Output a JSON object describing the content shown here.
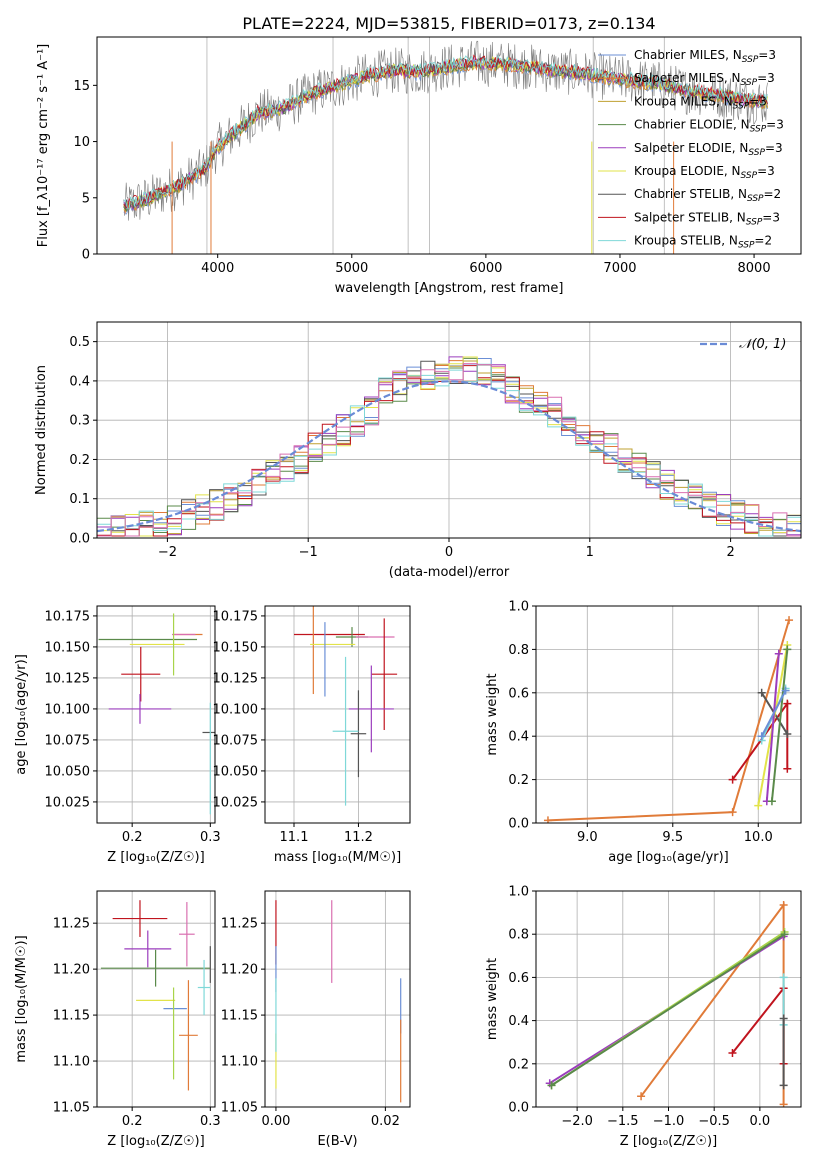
{
  "title": "PLATE=2224, MJD=53815, FIBERID=0173, z=0.134",
  "chart_data": [
    {
      "type": "line",
      "xlabel": "wavelength [Angstrom, rest frame]",
      "ylabel": "Flux [f_λ10⁻¹⁷ erg cm⁻² s⁻¹ A⁻¹]",
      "xlim": [
        3100,
        8350
      ],
      "ylim": [
        0,
        19.3
      ],
      "xticks": [
        4000,
        5000,
        6000,
        7000,
        8000
      ],
      "yticks": [
        0,
        5,
        10,
        15
      ],
      "legend": "top-right",
      "series": [
        {
          "name": "Chabrier MILES, N_SSP=3",
          "color": "#6b8fd6"
        },
        {
          "name": "Salpeter MILES, N_SSP=3",
          "color": "#e07b39"
        },
        {
          "name": "Kroupa MILES, N_SSP=3",
          "color": "#bfa030"
        },
        {
          "name": "Chabrier ELODIE, N_SSP=3",
          "color": "#5a8a4a"
        },
        {
          "name": "Salpeter ELODIE, N_SSP=3",
          "color": "#9b3dbd"
        },
        {
          "name": "Kroupa ELODIE, N_SSP=3",
          "color": "#e2e34a"
        },
        {
          "name": "Chabrier STELIB, N_SSP=2",
          "color": "#555555"
        },
        {
          "name": "Salpeter STELIB, N_SSP=3",
          "color": "#c0141e"
        },
        {
          "name": "Kroupa STELIB, N_SSP=2",
          "color": "#7fd8d8"
        }
      ],
      "data_series": {
        "name": "data",
        "color": "#7a7a7a"
      },
      "continuum_knots": [
        [
          3300,
          4.2
        ],
        [
          3500,
          5
        ],
        [
          3700,
          6
        ],
        [
          3900,
          7.5
        ],
        [
          4000,
          9.5
        ],
        [
          4100,
          10.5
        ],
        [
          4300,
          12.5
        ],
        [
          4500,
          13
        ],
        [
          4700,
          14.3
        ],
        [
          4900,
          15
        ],
        [
          5100,
          15.8
        ],
        [
          5300,
          16.3
        ],
        [
          5500,
          16.2
        ],
        [
          5700,
          16.6
        ],
        [
          5900,
          17
        ],
        [
          6100,
          16.9
        ],
        [
          6300,
          16.7
        ],
        [
          6500,
          16.3
        ],
        [
          6700,
          16.1
        ],
        [
          6900,
          15.7
        ],
        [
          7100,
          15.4
        ],
        [
          7300,
          15.1
        ],
        [
          7500,
          14.5
        ],
        [
          7700,
          14.2
        ],
        [
          7900,
          13.8
        ],
        [
          8100,
          13.5
        ]
      ]
    },
    {
      "type": "histogram",
      "xlabel": "(data-model)/error",
      "ylabel": "Normed distribution",
      "xlim": [
        -2.5,
        2.5
      ],
      "ylim": [
        0,
        0.55
      ],
      "xticks": [
        -2,
        -1,
        0,
        1,
        2
      ],
      "yticks": [
        0.0,
        0.1,
        0.2,
        0.3,
        0.4,
        0.5
      ],
      "legend": "top-right",
      "reference_curve": {
        "name": "𝒩(0, 1)",
        "color": "#6a8bd6",
        "mean": 0,
        "sigma": 1
      }
    },
    {
      "type": "scatter",
      "xlabel": "Z [log₁₀(Z/Z☉)]",
      "ylabel": "age  [log₁₀(age/yr)]",
      "xlim": [
        0.155,
        0.306
      ],
      "ylim": [
        10.008,
        10.183
      ],
      "xticks": [
        0.2,
        0.3
      ],
      "yticks": [
        10.025,
        10.05,
        10.075,
        10.1,
        10.125,
        10.15,
        10.175
      ],
      "points": [
        {
          "x": 0.22,
          "y": 10.156,
          "xerr": 0.063,
          "yerr": 0,
          "color": "#5a8a4a"
        },
        {
          "x": 0.272,
          "y": 10.16,
          "xerr": 0.018,
          "yerr": 0,
          "color": "#e07b39"
        },
        {
          "x": 0.266,
          "y": 10.16,
          "xerr": 0.015,
          "yerr": 0,
          "color": "#d96fb0"
        },
        {
          "x": 0.232,
          "y": 10.152,
          "xerr": 0.035,
          "yerr": 0,
          "color": "#e2e34a"
        },
        {
          "x": 0.253,
          "y": 10.152,
          "xerr": 0,
          "yerr": 0.025,
          "color": "#a8d44a"
        },
        {
          "x": 0.211,
          "y": 10.128,
          "xerr": 0.025,
          "yerr": 0.022,
          "color": "#c0141e"
        },
        {
          "x": 0.21,
          "y": 10.1,
          "xerr": 0.04,
          "yerr": 0.012,
          "color": "#9b3dbd"
        },
        {
          "x": 0.298,
          "y": 10.081,
          "xerr": 0.008,
          "yerr": 0,
          "color": "#555555"
        },
        {
          "x": 0.3,
          "y": 10.06,
          "xerr": 0,
          "yerr": 0.045,
          "color": "#7fd8d8"
        }
      ]
    },
    {
      "type": "scatter",
      "xlabel": "mass [log₁₀(M/M☉)]",
      "ylabel": "",
      "xlim": [
        11.055,
        11.28
      ],
      "ylim": [
        10.008,
        10.183
      ],
      "xticks": [
        11.1,
        11.2
      ],
      "yticks": [
        10.025,
        10.05,
        10.075,
        10.1,
        10.125,
        10.15,
        10.175
      ],
      "points": [
        {
          "x": 11.155,
          "y": 10.16,
          "xerr": 0.055,
          "yerr": 0,
          "color": "#c0141e"
        },
        {
          "x": 11.19,
          "y": 10.158,
          "xerr": 0.025,
          "yerr": 0.008,
          "color": "#5a8a4a"
        },
        {
          "x": 11.226,
          "y": 10.158,
          "xerr": 0.03,
          "yerr": 0,
          "color": "#d96fb0"
        },
        {
          "x": 11.13,
          "y": 10.152,
          "xerr": 0,
          "yerr": 0.04,
          "color": "#e07b39"
        },
        {
          "x": 11.16,
          "y": 10.152,
          "xerr": 0.035,
          "yerr": 0,
          "color": "#e2e34a"
        },
        {
          "x": 11.148,
          "y": 10.14,
          "xerr": 0,
          "yerr": 0.03,
          "color": "#6b8fd6"
        },
        {
          "x": 11.24,
          "y": 10.128,
          "xerr": 0.02,
          "yerr": 0.045,
          "color": "#c0141e"
        },
        {
          "x": 11.22,
          "y": 10.1,
          "xerr": 0.035,
          "yerr": 0.035,
          "color": "#9b3dbd"
        },
        {
          "x": 11.2,
          "y": 10.08,
          "xerr": 0.012,
          "yerr": 0.035,
          "color": "#555555"
        },
        {
          "x": 11.18,
          "y": 10.082,
          "xerr": 0.02,
          "yerr": 0.06,
          "color": "#7fd8d8"
        }
      ]
    },
    {
      "type": "line",
      "xlabel": "age  [log₁₀(age/yr)]",
      "ylabel": "mass weight",
      "xlim": [
        8.7,
        10.25
      ],
      "ylim": [
        0,
        1
      ],
      "xticks": [
        9.0,
        9.5,
        10.0
      ],
      "yticks": [
        0.0,
        0.2,
        0.4,
        0.6,
        0.8,
        1.0
      ],
      "series": [
        {
          "name": "Salpeter MILES",
          "color": "#e07b39",
          "points": [
            [
              8.77,
              0.012
            ],
            [
              9.85,
              0.05
            ],
            [
              10.18,
              0.935
            ]
          ]
        },
        {
          "name": "Salpeter STELIB",
          "color": "#c0141e",
          "points": [
            [
              9.85,
              0.2
            ],
            [
              10.17,
              0.55
            ],
            [
              10.17,
              0.25
            ]
          ]
        },
        {
          "name": "Chabrier STELIB",
          "color": "#555555",
          "points": [
            [
              10.02,
              0.6
            ],
            [
              10.17,
              0.41
            ]
          ]
        },
        {
          "name": "Kroupa STELIB",
          "color": "#7fd8d8",
          "points": [
            [
              10.02,
              0.38
            ],
            [
              10.16,
              0.62
            ]
          ]
        },
        {
          "name": "Kroupa ELODIE",
          "color": "#e2e34a",
          "points": [
            [
              10.0,
              0.08
            ],
            [
              10.17,
              0.82
            ]
          ]
        },
        {
          "name": "Salpeter ELODIE",
          "color": "#9b3dbd",
          "points": [
            [
              10.05,
              0.1
            ],
            [
              10.12,
              0.78
            ]
          ]
        },
        {
          "name": "Chabrier ELODIE",
          "color": "#5a8a4a",
          "points": [
            [
              10.08,
              0.1
            ],
            [
              10.17,
              0.8
            ]
          ]
        },
        {
          "name": "Chabrier MILES",
          "color": "#6b8fd6",
          "points": [
            [
              10.02,
              0.4
            ],
            [
              10.16,
              0.61
            ]
          ]
        }
      ]
    },
    {
      "type": "scatter",
      "xlabel": "Z [log₁₀(Z/Z☉)]",
      "ylabel": "mass [log₁₀(M/M☉)]",
      "xlim": [
        0.155,
        0.306
      ],
      "ylim": [
        11.05,
        11.285
      ],
      "xticks": [
        0.2,
        0.3
      ],
      "yticks": [
        11.05,
        11.1,
        11.15,
        11.2,
        11.25
      ],
      "points": [
        {
          "x": 0.21,
          "y": 11.255,
          "xerr": 0.035,
          "yerr": 0.02,
          "color": "#c0141e"
        },
        {
          "x": 0.27,
          "y": 11.238,
          "xerr": 0.01,
          "yerr": 0.035,
          "color": "#d96fb0"
        },
        {
          "x": 0.22,
          "y": 11.222,
          "xerr": 0.03,
          "yerr": 0.02,
          "color": "#9b3dbd"
        },
        {
          "x": 0.23,
          "y": 11.201,
          "xerr": 0.07,
          "yerr": 0.02,
          "color": "#5a8a4a"
        },
        {
          "x": 0.3,
          "y": 11.205,
          "xerr": 0,
          "yerr": 0.02,
          "color": "#555555"
        },
        {
          "x": 0.23,
          "y": 11.166,
          "xerr": 0.025,
          "yerr": 0,
          "color": "#e2e34a"
        },
        {
          "x": 0.292,
          "y": 11.18,
          "xerr": 0.008,
          "yerr": 0.03,
          "color": "#7fd8d8"
        },
        {
          "x": 0.255,
          "y": 11.157,
          "xerr": 0.015,
          "yerr": 0,
          "color": "#6b8fd6"
        },
        {
          "x": 0.272,
          "y": 11.128,
          "xerr": 0.012,
          "yerr": 0.06,
          "color": "#e07b39"
        },
        {
          "x": 0.253,
          "y": 11.13,
          "xerr": 0,
          "yerr": 0.05,
          "color": "#a8d44a"
        }
      ]
    },
    {
      "type": "scatter",
      "xlabel": "E(B-V)",
      "ylabel": "",
      "xlim": [
        -0.002,
        0.0245
      ],
      "ylim": [
        11.05,
        11.285
      ],
      "xticks": [
        0.0,
        0.02
      ],
      "yticks": [
        11.05,
        11.1,
        11.15,
        11.2,
        11.25
      ],
      "points": [
        {
          "x": 0.0,
          "y": 11.24,
          "xerr": 0,
          "yerr": 0.035,
          "color": "#c0141e"
        },
        {
          "x": 0.0,
          "y": 11.2,
          "xerr": 0,
          "yerr": 0.025,
          "color": "#6b8fd6"
        },
        {
          "x": 0.0,
          "y": 11.1,
          "xerr": 0,
          "yerr": 0.03,
          "color": "#e2e34a"
        },
        {
          "x": 0.0,
          "y": 11.15,
          "xerr": 0,
          "yerr": 0.04,
          "color": "#7fd8d8"
        },
        {
          "x": 0.0102,
          "y": 11.23,
          "xerr": 0,
          "yerr": 0.045,
          "color": "#d96fb0"
        },
        {
          "x": 0.0228,
          "y": 11.16,
          "xerr": 0,
          "yerr": 0.03,
          "color": "#6b8fd6"
        },
        {
          "x": 0.0228,
          "y": 11.1,
          "xerr": 0,
          "yerr": 0.045,
          "color": "#e07b39"
        }
      ]
    },
    {
      "type": "line",
      "xlabel": "Z [log₁₀(Z/Z☉)]",
      "ylabel": "mass weight",
      "xlim": [
        -2.45,
        0.45
      ],
      "ylim": [
        0,
        1
      ],
      "xticks": [
        -2.0,
        -1.5,
        -1.0,
        -0.5,
        0.0
      ],
      "yticks": [
        0.0,
        0.2,
        0.4,
        0.6,
        0.8,
        1.0
      ],
      "series": [
        {
          "name": "Salpeter MILES",
          "color": "#e07b39",
          "points": [
            [
              -1.3,
              0.05
            ],
            [
              0.26,
              0.935
            ],
            [
              0.26,
              0.012
            ]
          ]
        },
        {
          "name": "Salpeter ELODIE",
          "color": "#9b3dbd",
          "points": [
            [
              -2.3,
              0.11
            ],
            [
              0.26,
              0.79
            ]
          ]
        },
        {
          "name": "Kroupa ELODIE",
          "color": "#a8d44a",
          "points": [
            [
              -2.28,
              0.1
            ],
            [
              0.27,
              0.81
            ]
          ]
        },
        {
          "name": "Chabrier ELODIE",
          "color": "#5a8a4a",
          "points": [
            [
              -2.28,
              0.1
            ],
            [
              0.27,
              0.8
            ]
          ]
        },
        {
          "name": "Salpeter STELIB",
          "color": "#c0141e",
          "points": [
            [
              -0.3,
              0.25
            ],
            [
              0.26,
              0.55
            ],
            [
              0.26,
              0.2
            ]
          ]
        },
        {
          "name": "Kroupa STELIB",
          "color": "#7fd8d8",
          "points": [
            [
              0.26,
              0.6
            ],
            [
              0.26,
              0.38
            ]
          ]
        },
        {
          "name": "Chabrier STELIB",
          "color": "#555555",
          "points": [
            [
              0.26,
              0.41
            ],
            [
              0.26,
              0.1
            ]
          ]
        }
      ]
    }
  ]
}
